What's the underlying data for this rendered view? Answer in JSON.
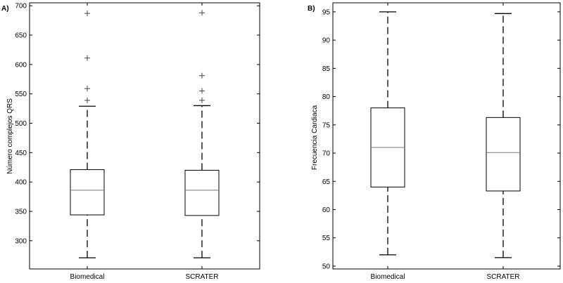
{
  "chart_data": [
    {
      "type": "box",
      "panel_label": "A)",
      "ylabel": "Número complejos QRS",
      "xlabel": "",
      "categories": [
        "Biomedical",
        "SCRATER"
      ],
      "ylim": [
        252,
        705
      ],
      "yticks": [
        300,
        350,
        400,
        450,
        500,
        550,
        600,
        650,
        700
      ],
      "grid": false,
      "boxes": [
        {
          "category": "Biomedical",
          "whisker_low": 271,
          "q1": 344,
          "median": 386,
          "q3": 421,
          "whisker_high": 529,
          "outliers": [
            687,
            611,
            559,
            539
          ]
        },
        {
          "category": "SCRATER",
          "whisker_low": 271,
          "q1": 343,
          "median": 386,
          "q3": 420,
          "whisker_high": 530,
          "outliers": [
            688,
            581,
            555,
            539
          ]
        }
      ]
    },
    {
      "type": "box",
      "panel_label": "B)",
      "ylabel": "Frecuencia Cardiaca",
      "xlabel": "",
      "categories": [
        "Biomedical",
        "SCRATER"
      ],
      "ylim": [
        49.5,
        96.6
      ],
      "yticks": [
        50,
        55,
        60,
        65,
        70,
        75,
        80,
        85,
        90,
        95
      ],
      "grid": false,
      "boxes": [
        {
          "category": "Biomedical",
          "whisker_low": 52,
          "q1": 64,
          "median": 71,
          "q3": 78,
          "whisker_high": 95,
          "outliers": []
        },
        {
          "category": "SCRATER",
          "whisker_low": 51.5,
          "q1": 63.3,
          "median": 70.1,
          "q3": 76.3,
          "whisker_high": 94.7,
          "outliers": []
        }
      ]
    }
  ]
}
